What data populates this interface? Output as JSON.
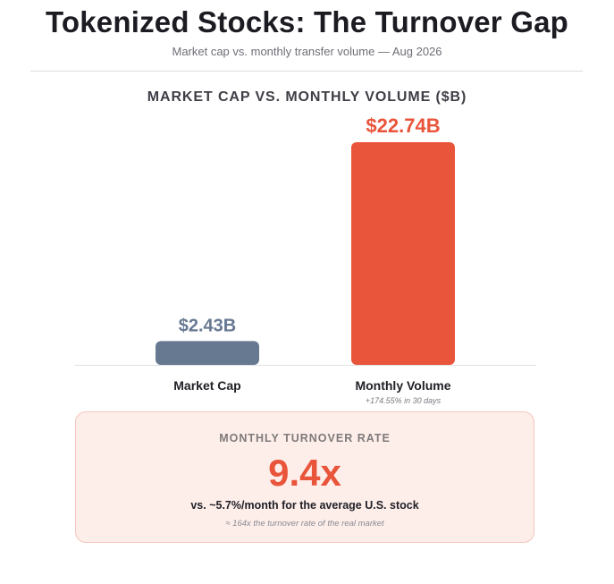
{
  "header": {
    "title": "Tokenized Stocks: The Turnover Gap",
    "subtitle": "Market cap vs. monthly transfer volume — Aug 2026"
  },
  "chart_data": {
    "type": "bar",
    "title": "MARKET CAP VS. MONTHLY VOLUME ($B)",
    "categories": [
      "Market Cap",
      "Monthly Volume"
    ],
    "values": [
      2.43,
      22.74
    ],
    "value_labels": [
      "$2.43B",
      "$22.74B"
    ],
    "category_notes": [
      "",
      "+174.55% in 30 days"
    ],
    "colors": [
      "#677891",
      "#e9553b"
    ],
    "ylim": [
      0,
      22.74
    ],
    "grid": false,
    "legend": "none"
  },
  "turnover": {
    "label": "MONTHLY TURNOVER RATE",
    "value": "9.4x",
    "comparison": "vs. ~5.7%/month for the average U.S. stock",
    "note": "≈ 164x the turnover rate of the real market"
  }
}
